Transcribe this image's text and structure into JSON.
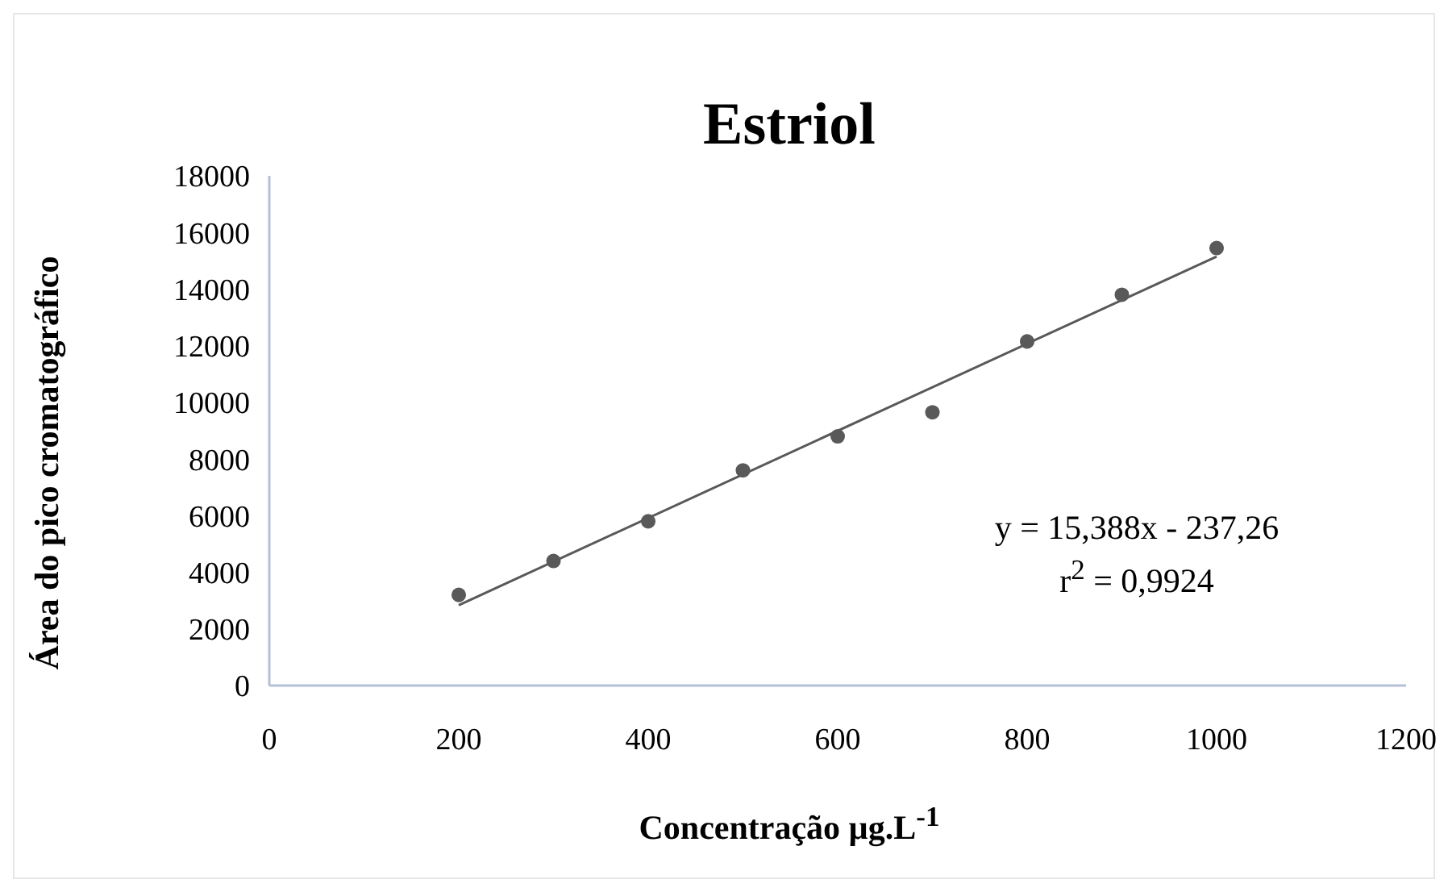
{
  "chart_data": {
    "type": "scatter",
    "title": "Estriol",
    "xlabel": "Concentração µg.L$^{-1}$",
    "ylabel": "Área do pico cromatográfico",
    "x": [
      200,
      300,
      400,
      500,
      600,
      700,
      800,
      900,
      1000
    ],
    "series": [
      {
        "color": "#595959",
        "marker": "circle",
        "values": [
          3200,
          4400,
          5800,
          7600,
          8800,
          9650,
          12150,
          13800,
          15450
        ]
      },
      {
        "type": "line",
        "color": "#595959",
        "x": [
          200,
          1000
        ],
        "values": [
          2840,
          15150
        ]
      }
    ],
    "xlim": [
      0,
      1200
    ],
    "xticks": [
      0,
      200,
      400,
      600,
      800,
      1000,
      1200
    ],
    "ylim": [
      0,
      18000
    ],
    "yticks": [
      0,
      2000,
      4000,
      6000,
      8000,
      10000,
      12000,
      14000,
      16000,
      18000
    ],
    "annotations": [
      "y = 15,388x - 237,26\nr$^{2}$ = 0,9924"
    ],
    "line_style": "solid",
    "grid": false
  }
}
